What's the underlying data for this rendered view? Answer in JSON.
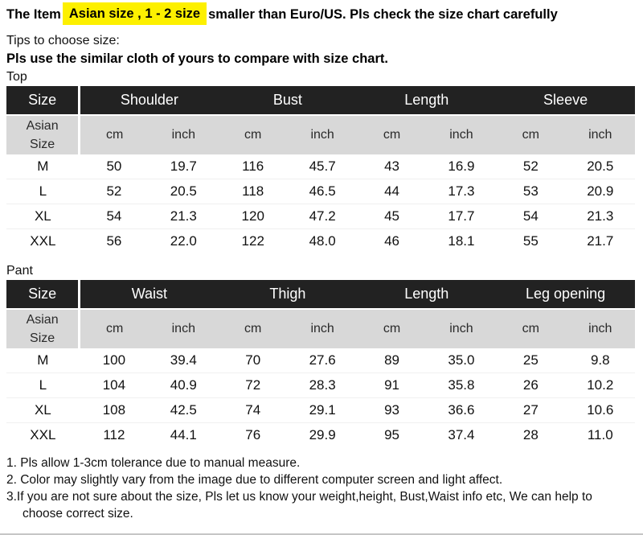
{
  "colors": {
    "highlight_yellow": "#fdf000",
    "table_header_bg": "#222222",
    "table_header_text": "#ffffff",
    "units_row_bg": "#d8d8d8",
    "body_text": "#111111"
  },
  "header": {
    "title_prefix": "The Item",
    "title_highlight": "Asian size , 1 - 2 size",
    "title_suffix": "smaller than Euro/US. Pls check the size chart carefully",
    "tips_line": "Tips to choose size:",
    "tips_bold": "Pls use the similar cloth of yours to compare with size chart."
  },
  "units": {
    "cm": "cm",
    "inch": "inch"
  },
  "top_table": {
    "section_label": "Top",
    "corner_header": "Size",
    "row_label_header": "Asian Size",
    "groups": [
      "Shoulder",
      "Bust",
      "Length",
      "Sleeve"
    ],
    "rows": [
      {
        "size": "M",
        "values": [
          "50",
          "19.7",
          "116",
          "45.7",
          "43",
          "16.9",
          "52",
          "20.5"
        ]
      },
      {
        "size": "L",
        "values": [
          "52",
          "20.5",
          "118",
          "46.5",
          "44",
          "17.3",
          "53",
          "20.9"
        ]
      },
      {
        "size": "XL",
        "values": [
          "54",
          "21.3",
          "120",
          "47.2",
          "45",
          "17.7",
          "54",
          "21.3"
        ]
      },
      {
        "size": "XXL",
        "values": [
          "56",
          "22.0",
          "122",
          "48.0",
          "46",
          "18.1",
          "55",
          "21.7"
        ]
      }
    ]
  },
  "pant_table": {
    "section_label": "Pant",
    "corner_header": "Size",
    "row_label_header": "Asian Size",
    "groups": [
      "Waist",
      "Thigh",
      "Length",
      "Leg opening"
    ],
    "rows": [
      {
        "size": "M",
        "values": [
          "100",
          "39.4",
          "70",
          "27.6",
          "89",
          "35.0",
          "25",
          "9.8"
        ]
      },
      {
        "size": "L",
        "values": [
          "104",
          "40.9",
          "72",
          "28.3",
          "91",
          "35.8",
          "26",
          "10.2"
        ]
      },
      {
        "size": "XL",
        "values": [
          "108",
          "42.5",
          "74",
          "29.1",
          "93",
          "36.6",
          "27",
          "10.6"
        ]
      },
      {
        "size": "XXL",
        "values": [
          "112",
          "44.1",
          "76",
          "29.9",
          "95",
          "37.4",
          "28",
          "11.0"
        ]
      }
    ]
  },
  "notes": [
    "1. Pls allow 1-3cm tolerance due to manual measure.",
    "2. Color may slightly vary from the image due to different computer screen and light affect.",
    "3.If you are not sure about the size, Pls let us know your weight,height, Bust,Waist info etc, We can help to choose correct size."
  ]
}
